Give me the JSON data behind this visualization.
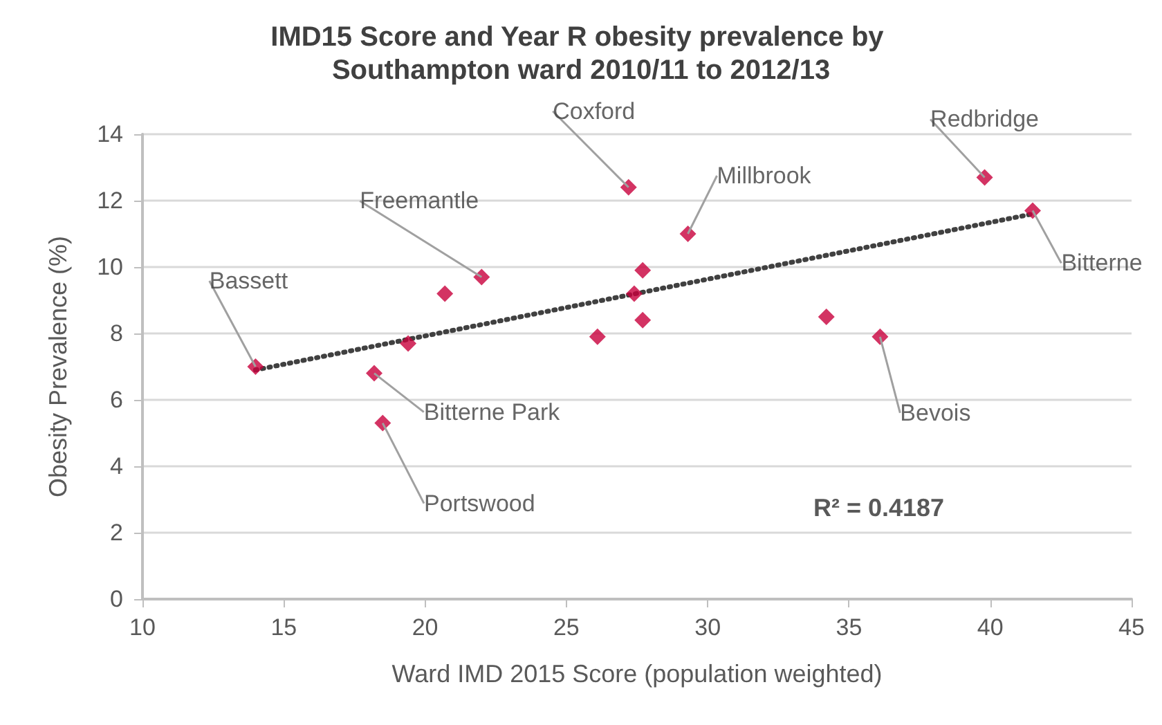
{
  "chart_data": {
    "type": "scatter",
    "title": "IMD15 Score and Year R obesity prevalence by Southampton ward 2010/11 to 2012/13",
    "xlabel": "Ward IMD 2015 Score (population weighted)",
    "ylabel": "Obesity Prevalence (%)",
    "series": [
      {
        "color": "#c8003c",
        "x": [
          14.0,
          19.4,
          18.2,
          18.5,
          20.7,
          22.0,
          27.2,
          29.3,
          27.7,
          27.4,
          27.7,
          26.1,
          39.8,
          41.5,
          34.2,
          36.1
        ],
        "values": [
          7.0,
          7.7,
          6.8,
          5.3,
          9.2,
          9.7,
          12.4,
          11.0,
          9.9,
          9.2,
          8.4,
          7.9,
          12.7,
          11.7,
          8.5,
          7.9
        ]
      },
      {
        "type": "line",
        "color": "#404040",
        "line_style": "dotted",
        "marker": "none",
        "x": [
          14.0,
          41.5
        ],
        "values": [
          6.9,
          11.6
        ]
      }
    ],
    "annotations": [
      {
        "text": "Bassett",
        "x": 14.0,
        "y": 7.0
      },
      {
        "text": "Freemantle",
        "x": 22.0,
        "y": 9.7
      },
      {
        "text": "Bitterne Park",
        "x": 18.2,
        "y": 6.8
      },
      {
        "text": "Portswood",
        "x": 18.5,
        "y": 5.3
      },
      {
        "text": "Coxford",
        "x": 27.2,
        "y": 12.4
      },
      {
        "text": "Millbrook",
        "x": 29.3,
        "y": 11.0
      },
      {
        "text": "Redbridge",
        "x": 39.8,
        "y": 12.7
      },
      {
        "text": "Bitterne",
        "x": 41.5,
        "y": 11.7
      },
      {
        "text": "Bevois",
        "x": 36.1,
        "y": 7.9
      },
      "R² = 0.4187"
    ],
    "xlim": [
      10,
      45
    ],
    "xticks": [
      10,
      15,
      20,
      25,
      30,
      35,
      40,
      45
    ],
    "ylim": [
      0,
      14
    ],
    "yticks": [
      0,
      2,
      4,
      6,
      8,
      10,
      12,
      14
    ],
    "grid": "y",
    "marker": "diamond"
  }
}
